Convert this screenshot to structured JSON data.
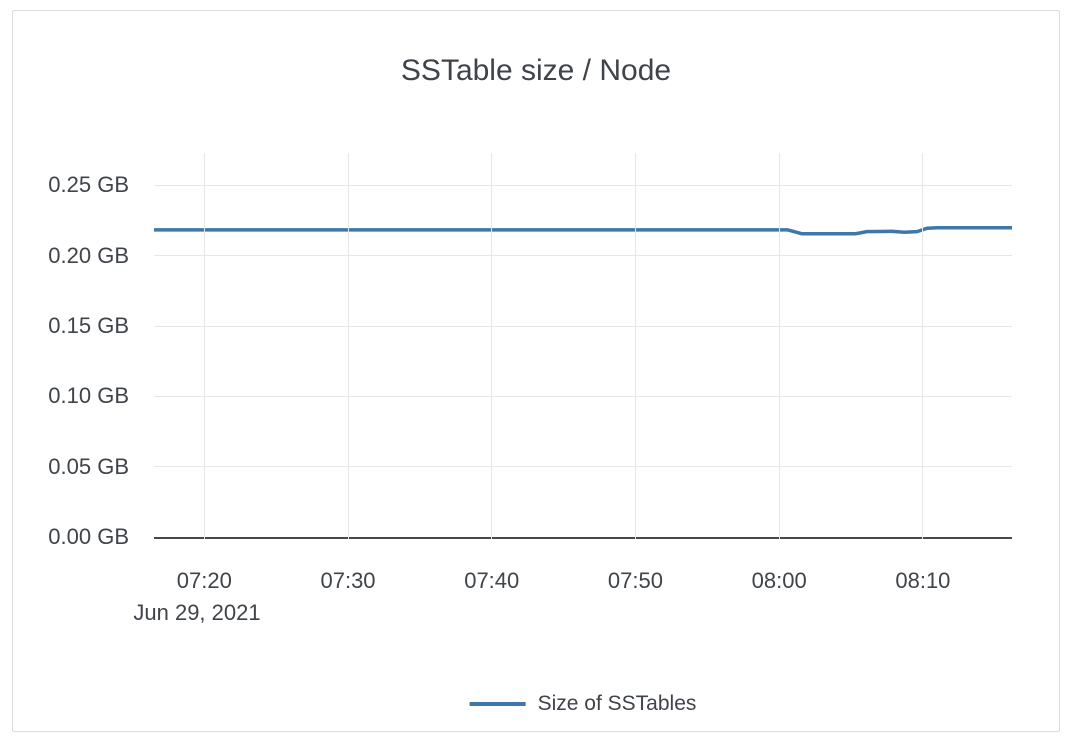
{
  "card": {
    "title": "SSTable size / Node"
  },
  "colors": {
    "line": "#3d77ab",
    "grid": "#e6e6e6",
    "axis": "#45484d",
    "text": "#3f434a",
    "border": "#dcdcdc",
    "background": "#ffffff"
  },
  "legend": {
    "label": "Size of SSTables"
  },
  "chart_data": {
    "type": "line",
    "title": "SSTable size / Node",
    "grid": true,
    "legend_position": "bottom-center",
    "x_axis": {
      "unit": "time of day (minutes since midnight)",
      "range": [
        436.5,
        496.2
      ],
      "date_label": "Jun 29, 2021",
      "ticks": [
        {
          "t": 440,
          "label": "07:20"
        },
        {
          "t": 450,
          "label": "07:30"
        },
        {
          "t": 460,
          "label": "07:40"
        },
        {
          "t": 470,
          "label": "07:50"
        },
        {
          "t": 480,
          "label": "08:00"
        },
        {
          "t": 490,
          "label": "08:10"
        }
      ]
    },
    "y_axis": {
      "unit": "GB",
      "range": [
        0,
        0.2745
      ],
      "ticks": [
        {
          "v": 0.0,
          "label": "0.00 GB"
        },
        {
          "v": 0.05,
          "label": "0.05 GB"
        },
        {
          "v": 0.1,
          "label": "0.10 GB"
        },
        {
          "v": 0.15,
          "label": "0.15 GB"
        },
        {
          "v": 0.2,
          "label": "0.20 GB"
        },
        {
          "v": 0.25,
          "label": "0.25 GB"
        }
      ]
    },
    "series": [
      {
        "name": "Size of SSTables",
        "color": "#3d77ab",
        "points": [
          [
            436.5,
            0.2184
          ],
          [
            480.6,
            0.2184
          ],
          [
            481.6,
            0.2156
          ],
          [
            485.3,
            0.2156
          ],
          [
            486.1,
            0.2172
          ],
          [
            487.8,
            0.2174
          ],
          [
            488.7,
            0.2167
          ],
          [
            489.6,
            0.2172
          ],
          [
            490.3,
            0.2196
          ],
          [
            491.0,
            0.2199
          ],
          [
            496.2,
            0.2199
          ]
        ]
      }
    ]
  }
}
